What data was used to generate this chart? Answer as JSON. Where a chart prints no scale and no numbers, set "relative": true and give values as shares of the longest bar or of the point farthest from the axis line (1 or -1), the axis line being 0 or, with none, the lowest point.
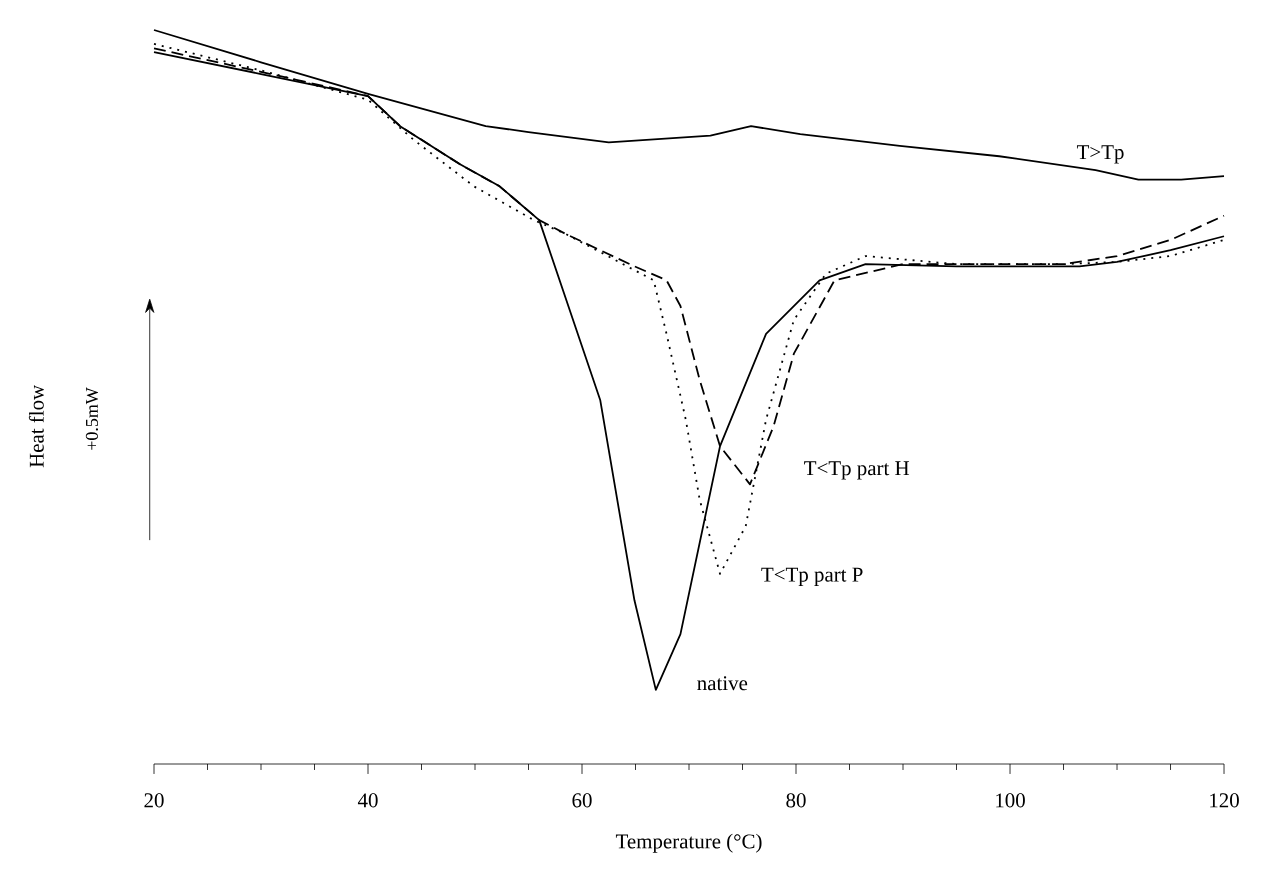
{
  "chart_data": {
    "type": "line",
    "relative": true,
    "xlabel": "Temperature (°C)",
    "ylabel": "Heat flow",
    "annotations": [
      "+0.5mW"
    ],
    "xlim": [
      20,
      120
    ],
    "xticks": [
      20,
      40,
      60,
      80,
      100,
      120
    ],
    "grid": false,
    "legend": false,
    "marker": "none",
    "series": [
      {
        "name": "T>Tp",
        "color": "#000000",
        "line_style": "solid",
        "x": [
          20,
          30,
          40,
          51,
          55,
          62.5,
          72,
          75.8,
          80.4,
          89.7,
          99,
          108,
          112,
          116,
          120
        ],
        "values": [
          1,
          0.956,
          0.913,
          0.869,
          0.861,
          0.847,
          0.856,
          0.869,
          0.858,
          0.842,
          0.828,
          0.809,
          0.796,
          0.796,
          0.801
        ]
      },
      {
        "name": "T<Tp part H",
        "color": "#000000",
        "line_style": "dashed",
        "x": [
          20,
          30,
          40,
          43,
          48.6,
          52.3,
          56,
          58.5,
          64.9,
          67.9,
          69.2,
          71,
          72.9,
          75.7,
          77.9,
          79.8,
          83.6,
          90,
          105,
          110,
          115,
          120
        ],
        "values": [
          0.975,
          0.943,
          0.91,
          0.869,
          0.817,
          0.787,
          0.741,
          0.722,
          0.678,
          0.659,
          0.624,
          0.523,
          0.433,
          0.381,
          0.46,
          0.559,
          0.659,
          0.681,
          0.681,
          0.692,
          0.714,
          0.747
        ]
      },
      {
        "name": "T<Tp part P",
        "color": "#000000",
        "line_style": "dotted",
        "x": [
          20,
          30,
          40,
          44.3,
          49.9,
          55.5,
          58.5,
          66.7,
          67.9,
          69.7,
          71,
          72.9,
          75.3,
          77.2,
          79.8,
          82.8,
          86.5,
          95,
          105,
          110,
          115,
          120
        ],
        "values": [
          0.981,
          0.945,
          0.905,
          0.85,
          0.787,
          0.741,
          0.722,
          0.659,
          0.586,
          0.469,
          0.36,
          0.259,
          0.324,
          0.469,
          0.605,
          0.668,
          0.692,
          0.681,
          0.681,
          0.684,
          0.692,
          0.714
        ]
      },
      {
        "name": "native",
        "color": "#000000",
        "line_style": "solid",
        "x": [
          20,
          30,
          40,
          43,
          48.6,
          52.3,
          56,
          61.7,
          64.9,
          66.9,
          69.2,
          72.9,
          77.2,
          82.2,
          86.5,
          95,
          106.5,
          110,
          115,
          120
        ],
        "values": [
          0.97,
          0.94,
          0.91,
          0.869,
          0.817,
          0.787,
          0.741,
          0.496,
          0.223,
          0.101,
          0.177,
          0.433,
          0.586,
          0.659,
          0.681,
          0.678,
          0.678,
          0.684,
          0.7,
          0.719
        ]
      }
    ]
  }
}
